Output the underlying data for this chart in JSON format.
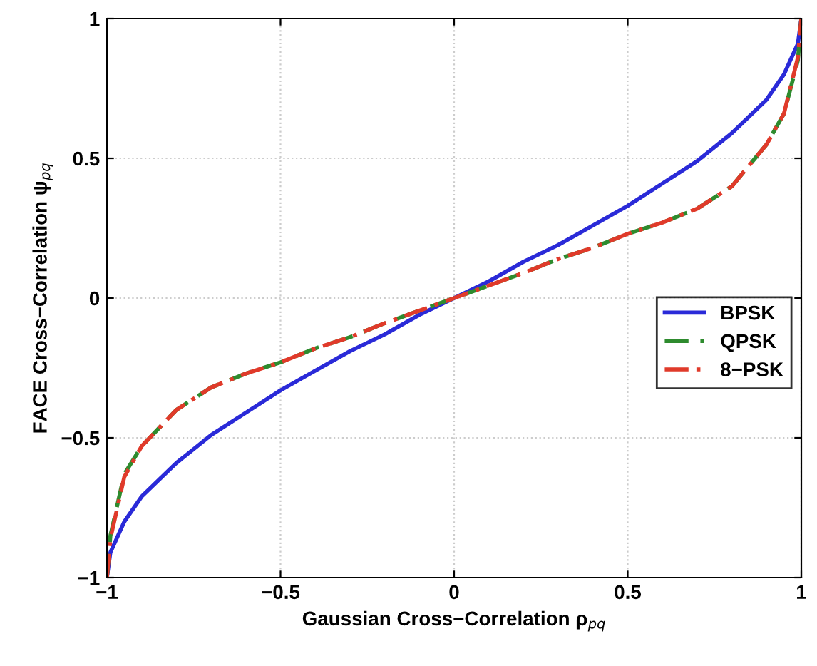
{
  "chart_data": {
    "type": "line",
    "xlabel": "Gaussian Cross−Correlation ρ$_{pq}$",
    "ylabel": "FACE Cross−Correlation ψ$_{pq}$",
    "x": [
      -1,
      -0.99,
      -0.95,
      -0.9,
      -0.8,
      -0.7,
      -0.6,
      -0.5,
      -0.4,
      -0.3,
      -0.2,
      -0.1,
      0,
      0.1,
      0.2,
      0.3,
      0.4,
      0.5,
      0.6,
      0.7,
      0.8,
      0.9,
      0.95,
      0.99,
      1
    ],
    "series": [
      {
        "name": "BPSK",
        "color": "#2a2ad8",
        "line_style": "solid",
        "values": [
          -1,
          -0.91,
          -0.8,
          -0.71,
          -0.59,
          -0.49,
          -0.41,
          -0.33,
          -0.26,
          -0.19,
          -0.13,
          -0.06,
          0,
          0.06,
          0.13,
          0.19,
          0.26,
          0.33,
          0.41,
          0.49,
          0.59,
          0.71,
          0.8,
          0.91,
          1
        ]
      },
      {
        "name": "QPSK",
        "color": "#2e8b2e",
        "line_style": "dashed",
        "values": [
          -1,
          -0.85,
          -0.63,
          -0.53,
          -0.4,
          -0.32,
          -0.27,
          -0.23,
          -0.18,
          -0.14,
          -0.09,
          -0.045,
          0,
          0.045,
          0.09,
          0.14,
          0.18,
          0.23,
          0.27,
          0.32,
          0.4,
          0.55,
          0.66,
          0.85,
          1
        ]
      },
      {
        "name": "8−PSK",
        "color": "#e03a2a",
        "line_style": "dashdot",
        "values": [
          -1,
          -0.86,
          -0.64,
          -0.53,
          -0.4,
          -0.32,
          -0.27,
          -0.23,
          -0.18,
          -0.14,
          -0.09,
          -0.045,
          0,
          0.045,
          0.09,
          0.14,
          0.18,
          0.23,
          0.27,
          0.32,
          0.4,
          0.55,
          0.66,
          0.86,
          1
        ]
      }
    ],
    "xlim": [
      -1,
      1
    ],
    "ylim": [
      -1,
      1
    ],
    "xticks": [
      {
        "value": -1,
        "label": "−1"
      },
      {
        "value": -0.5,
        "label": "−0.5"
      },
      0,
      0.5,
      1
    ],
    "yticks": [
      {
        "value": -1,
        "label": "−1"
      },
      {
        "value": -0.5,
        "label": "−0.5"
      },
      0,
      0.5,
      1
    ],
    "grid": true,
    "legend": "right"
  }
}
